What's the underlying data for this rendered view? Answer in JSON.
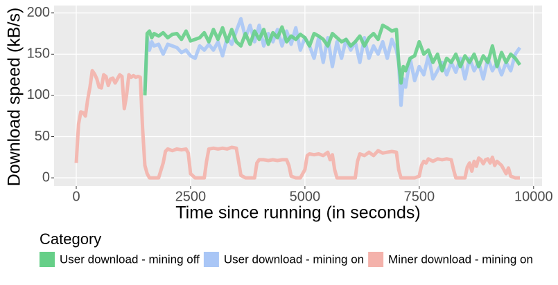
{
  "chart_data": {
    "type": "line",
    "x_label": "Time since running (in seconds)",
    "y_label": "Download speed (kB/s)",
    "legend_title": "Category",
    "legend_position": "bottom",
    "grid": true,
    "xlim": [
      -485,
      10185
    ],
    "ylim": [
      -10,
      209
    ],
    "xticks": [
      0,
      2500,
      5000,
      7500,
      10000
    ],
    "yticks": [
      0,
      50,
      100,
      150,
      200
    ],
    "series": [
      {
        "name": "User download - mining off",
        "color": "#66cf88",
        "x": [
          1500,
          1550,
          1600,
          1650,
          1700,
          1800,
          1900,
          2000,
          2100,
          2200,
          2300,
          2400,
          2500,
          2600,
          2700,
          2800,
          2900,
          3000,
          3100,
          3200,
          3300,
          3400,
          3500,
          3600,
          3700,
          3800,
          3900,
          4000,
          4100,
          4200,
          4300,
          4400,
          4500,
          4600,
          4700,
          4800,
          4900,
          5000,
          5100,
          5200,
          5300,
          5400,
          5500,
          5600,
          5700,
          5800,
          5900,
          6000,
          6100,
          6200,
          6300,
          6400,
          6500,
          6600,
          6700,
          6800,
          6900,
          7000,
          7050,
          7100,
          7150,
          7200,
          7300,
          7400,
          7500,
          7600,
          7700,
          7800,
          7900,
          8000,
          8100,
          8200,
          8300,
          8400,
          8500,
          8600,
          8700,
          8800,
          8900,
          9000,
          9100,
          9200,
          9300,
          9400,
          9500,
          9600,
          9700
        ],
        "values": [
          100,
          175,
          178,
          170,
          175,
          172,
          176,
          170,
          174,
          175,
          168,
          178,
          166,
          168,
          170,
          176,
          165,
          180,
          168,
          182,
          165,
          180,
          165,
          160,
          175,
          162,
          178,
          168,
          180,
          162,
          176,
          170,
          183,
          165,
          172,
          168,
          174,
          170,
          160,
          175,
          172,
          168,
          160,
          175,
          170,
          165,
          168,
          160,
          165,
          172,
          160,
          170,
          175,
          168,
          185,
          182,
          178,
          180,
          140,
          115,
          135,
          130,
          145,
          148,
          165,
          150,
          155,
          140,
          150,
          130,
          145,
          140,
          150,
          135,
          148,
          140,
          150,
          135,
          148,
          140,
          160,
          135,
          152,
          140,
          150,
          145,
          137
        ]
      },
      {
        "name": "User download - mining on",
        "color": "#a9c6f6",
        "x": [
          1500,
          1550,
          1600,
          1650,
          1700,
          1800,
          1900,
          2000,
          2100,
          2200,
          2300,
          2400,
          2500,
          2600,
          2700,
          2800,
          2900,
          3000,
          3100,
          3200,
          3300,
          3400,
          3500,
          3600,
          3700,
          3800,
          3900,
          4000,
          4100,
          4200,
          4300,
          4400,
          4500,
          4600,
          4700,
          4800,
          4900,
          5000,
          5100,
          5200,
          5300,
          5400,
          5500,
          5600,
          5700,
          5800,
          5900,
          6000,
          6100,
          6200,
          6300,
          6400,
          6500,
          6600,
          6700,
          6800,
          6900,
          7000,
          7050,
          7100,
          7150,
          7200,
          7300,
          7400,
          7500,
          7600,
          7700,
          7800,
          7900,
          8000,
          8100,
          8200,
          8300,
          8400,
          8500,
          8600,
          8700,
          8800,
          8900,
          9000,
          9100,
          9200,
          9300,
          9400,
          9500,
          9600,
          9700
        ],
        "values": [
          105,
          170,
          155,
          165,
          160,
          162,
          150,
          162,
          160,
          158,
          152,
          155,
          148,
          145,
          160,
          155,
          162,
          155,
          165,
          148,
          170,
          162,
          178,
          193,
          170,
          185,
          165,
          185,
          160,
          175,
          165,
          180,
          160,
          178,
          162,
          182,
          155,
          170,
          160,
          145,
          170,
          140,
          170,
          135,
          165,
          145,
          168,
          155,
          165,
          140,
          170,
          145,
          160,
          150,
          165,
          145,
          168,
          155,
          140,
          88,
          120,
          110,
          145,
          118,
          135,
          125,
          148,
          120,
          130,
          140,
          125,
          140,
          128,
          145,
          120,
          145,
          130,
          140,
          120,
          145,
          130,
          140,
          125,
          140,
          130,
          150,
          158
        ]
      },
      {
        "name": "Miner download - mining on",
        "color": "#f4b2ab",
        "x": [
          0,
          50,
          100,
          150,
          200,
          250,
          300,
          350,
          400,
          450,
          500,
          550,
          600,
          650,
          700,
          750,
          800,
          850,
          900,
          950,
          1000,
          1050,
          1100,
          1150,
          1200,
          1250,
          1300,
          1350,
          1400,
          1450,
          1500,
          1550,
          1600,
          1700,
          1800,
          1900,
          1950,
          2000,
          2100,
          2200,
          2300,
          2400,
          2450,
          2500,
          2600,
          2700,
          2800,
          2850,
          2900,
          3000,
          3100,
          3200,
          3300,
          3400,
          3500,
          3550,
          3600,
          3700,
          3800,
          3900,
          3950,
          4000,
          4100,
          4200,
          4300,
          4400,
          4500,
          4600,
          4650,
          4700,
          4800,
          4900,
          5000,
          5050,
          5100,
          5200,
          5300,
          5400,
          5500,
          5550,
          5600,
          5650,
          5700,
          5800,
          5900,
          6000,
          6100,
          6150,
          6200,
          6300,
          6400,
          6500,
          6600,
          6700,
          6800,
          6900,
          7000,
          7050,
          7100,
          7200,
          7300,
          7400,
          7500,
          7550,
          7600,
          7650,
          7700,
          7800,
          7900,
          8000,
          8100,
          8200,
          8250,
          8300,
          8400,
          8500,
          8550,
          8600,
          8650,
          8700,
          8750,
          8800,
          8850,
          8900,
          8950,
          9000,
          9050,
          9100,
          9150,
          9200,
          9300,
          9400,
          9450,
          9500,
          9600,
          9700
        ],
        "values": [
          18,
          65,
          80,
          79,
          75,
          95,
          110,
          130,
          126,
          120,
          110,
          109,
          125,
          123,
          112,
          120,
          121,
          115,
          120,
          125,
          123,
          84,
          100,
          125,
          122,
          124,
          122,
          123,
          122,
          60,
          15,
          5,
          0,
          0,
          0,
          18,
          32,
          35,
          33,
          35,
          34,
          35,
          30,
          5,
          0,
          0,
          0,
          20,
          35,
          36,
          35,
          36,
          35,
          37,
          36,
          20,
          3,
          0,
          0,
          0,
          18,
          22,
          22,
          21,
          22,
          21,
          22,
          22,
          15,
          2,
          0,
          0,
          10,
          27,
          29,
          28,
          29,
          27,
          31,
          22,
          28,
          10,
          0,
          0,
          0,
          0,
          0,
          20,
          29,
          27,
          31,
          27,
          33,
          30,
          31,
          32,
          31,
          10,
          0,
          0,
          0,
          0,
          2,
          15,
          20,
          18,
          23,
          20,
          23,
          22,
          23,
          22,
          10,
          0,
          0,
          0,
          13,
          18,
          8,
          20,
          14,
          24,
          22,
          17,
          22,
          23,
          18,
          25,
          15,
          20,
          15,
          5,
          12,
          2,
          0,
          0
        ]
      }
    ]
  }
}
